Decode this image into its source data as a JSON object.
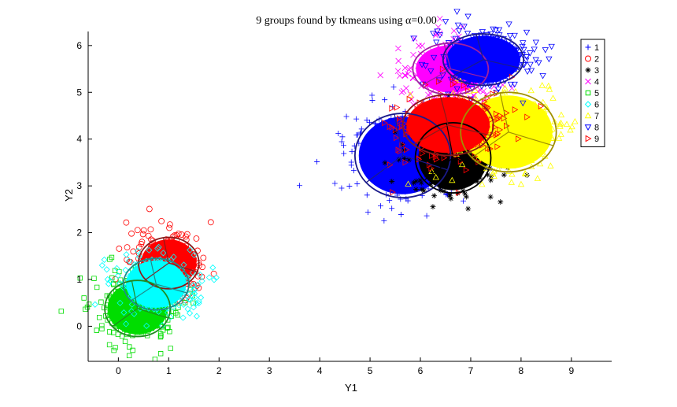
{
  "chart_data": {
    "type": "scatter",
    "title": "9 groups found by tkmeans using α=0.00",
    "xlabel": "Y1",
    "ylabel": "Y2",
    "xlim": [
      -0.6,
      9.8
    ],
    "ylim": [
      -0.75,
      6.3
    ],
    "xticks": [
      "0",
      "1",
      "2",
      "3",
      "4",
      "5",
      "6",
      "7",
      "8",
      "9"
    ],
    "yticks": [
      "0",
      "1",
      "2",
      "3",
      "4",
      "5",
      "6"
    ],
    "legend_position": "top-right",
    "series": [
      {
        "name": "1",
        "marker": "plus",
        "color": "#0000ff",
        "cx": 5.65,
        "cy": 3.65,
        "rx": 0.95,
        "ry": 0.9,
        "ring": "#1a1a8a"
      },
      {
        "name": "2",
        "marker": "circle",
        "color": "#ff0000",
        "cx": 1.0,
        "cy": 1.35,
        "rx": 0.6,
        "ry": 0.55,
        "ring": "#8a1a1a"
      },
      {
        "name": "3",
        "marker": "asterisk",
        "color": "#000000",
        "cx": 6.65,
        "cy": 3.6,
        "rx": 0.75,
        "ry": 0.75,
        "ring": "#000000"
      },
      {
        "name": "4",
        "marker": "x",
        "color": "#ff00ff",
        "cx": 6.6,
        "cy": 5.5,
        "rx": 0.75,
        "ry": 0.55,
        "ring": "#a020a0"
      },
      {
        "name": "5",
        "marker": "square",
        "color": "#00dd00",
        "cx": 0.38,
        "cy": 0.38,
        "rx": 0.65,
        "ry": 0.6,
        "ring": "#208a20"
      },
      {
        "name": "6",
        "marker": "diamond",
        "color": "#00ffff",
        "cx": 0.75,
        "cy": 0.9,
        "rx": 0.65,
        "ry": 0.55,
        "ring": "#208a8a"
      },
      {
        "name": "7",
        "marker": "triangle-up",
        "color": "#ffff00",
        "cx": 7.75,
        "cy": 4.15,
        "rx": 0.95,
        "ry": 0.85,
        "ring": "#a09000"
      },
      {
        "name": "8",
        "marker": "triangle-down",
        "color": "#0000ff",
        "cx": 7.25,
        "cy": 5.7,
        "rx": 0.8,
        "ry": 0.55,
        "ring": "#1a1a8a"
      },
      {
        "name": "9",
        "marker": "triangle-right",
        "color": "#ff0000",
        "cx": 6.55,
        "cy": 4.3,
        "rx": 0.9,
        "ry": 0.65,
        "ring": "#8a1a1a"
      }
    ]
  }
}
